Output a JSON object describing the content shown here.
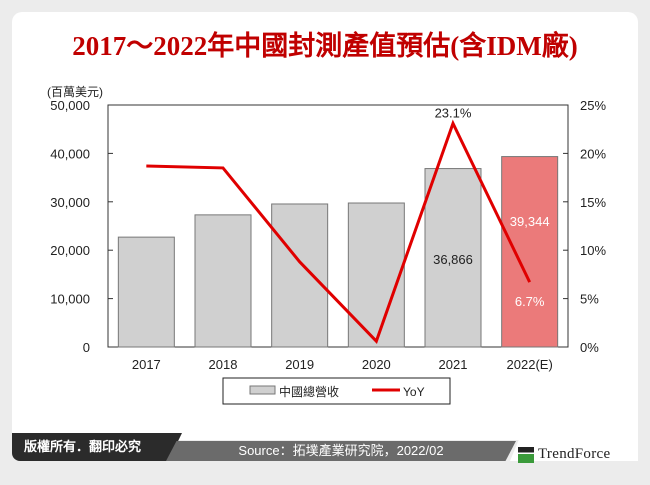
{
  "chart_data": {
    "type": "bar+line",
    "title": "2017～2022年中國封測產值預估(含IDM廠)",
    "y_unit_label": "(百萬美元)",
    "categories": [
      "2017",
      "2018",
      "2019",
      "2020",
      "2021",
      "2022(E)"
    ],
    "series": [
      {
        "name": "中國總營收",
        "type": "bar",
        "axis": "left",
        "values": [
          22700,
          27300,
          29550,
          29750,
          36866,
          39344
        ],
        "colors": [
          "#d0d0d0",
          "#d0d0d0",
          "#d0d0d0",
          "#d0d0d0",
          "#d0d0d0",
          "#eb7a7a"
        ]
      },
      {
        "name": "YoY",
        "type": "line",
        "axis": "right",
        "values": [
          18.7,
          18.5,
          8.8,
          0.6,
          23.1,
          6.7
        ],
        "color": "#e00000"
      }
    ],
    "left_axis": {
      "ylim": [
        0,
        50000
      ],
      "ticks": [
        "0",
        "10,000",
        "20,000",
        "30,000",
        "40,000",
        "50,000"
      ]
    },
    "right_axis": {
      "ylim": [
        0,
        25
      ],
      "ticks": [
        "0%",
        "5%",
        "10%",
        "15%",
        "20%",
        "25%"
      ]
    },
    "data_labels": [
      {
        "text": "36,866",
        "category": "2021",
        "series": "中國總營收",
        "color": "#222222"
      },
      {
        "text": "39,344",
        "category": "2022(E)",
        "series": "中國總營收",
        "color": "#ffffff"
      },
      {
        "text": "23.1%",
        "category": "2021",
        "series": "YoY",
        "color": "#222222"
      },
      {
        "text": "6.7%",
        "category": "2022(E)",
        "series": "YoY",
        "color": "#ffffff"
      }
    ],
    "legend_placement": "bottom",
    "grid": false
  },
  "footer": {
    "copyright": "版權所有．翻印必究",
    "source": "Source：拓墣產業研究院，2022/02",
    "brand": "TrendForce"
  }
}
